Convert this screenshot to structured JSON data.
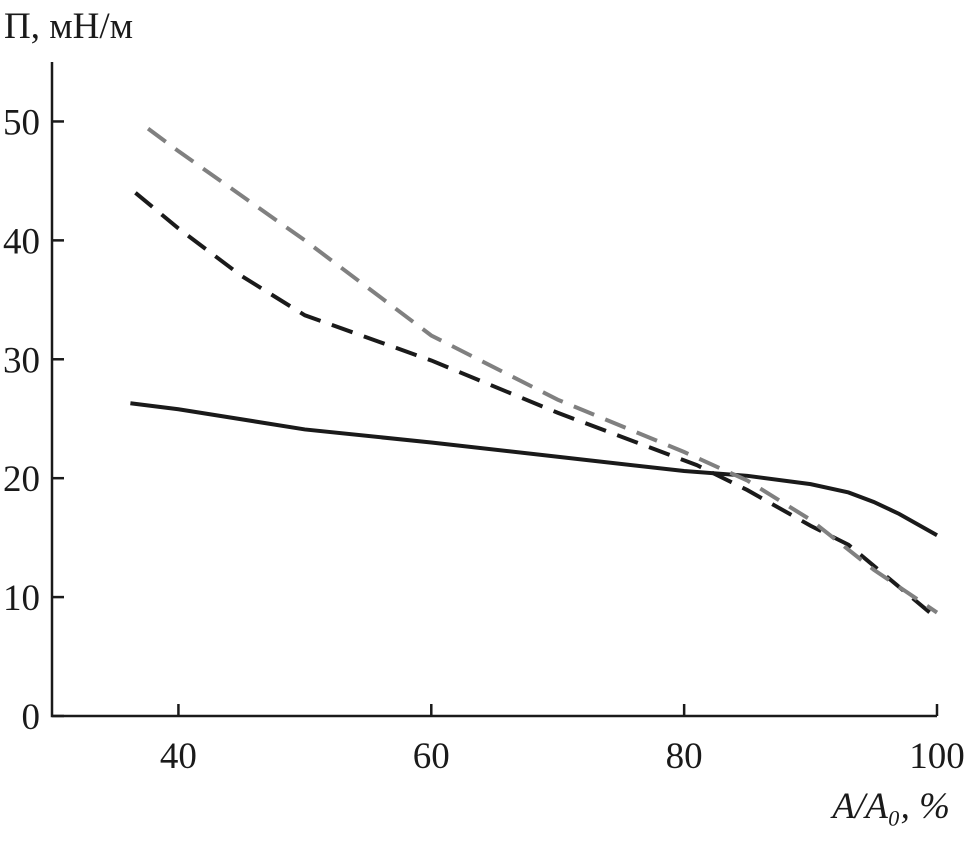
{
  "chart_data": {
    "type": "line",
    "ylabel": "П, мН/м",
    "xlabel": "A/A₀, %",
    "xlim": [
      30,
      100
    ],
    "xticks": [
      40,
      60,
      80,
      100
    ],
    "ylim": [
      0,
      55
    ],
    "yticks": [
      0,
      10,
      20,
      30,
      40,
      50
    ],
    "series": [
      {
        "color": "#1a1a1a",
        "dash": "solid",
        "x": [
          36.2,
          40,
          50,
          60,
          70,
          80,
          85,
          90,
          93,
          95,
          97,
          100
        ],
        "values": [
          26.3,
          25.8,
          24.1,
          23.0,
          21.8,
          20.6,
          20.2,
          19.5,
          18.8,
          18.0,
          17.0,
          15.2
        ]
      },
      {
        "color": "#1a1a1a",
        "dash": "dashed",
        "x": [
          36.6,
          40,
          45,
          50,
          60,
          70,
          81,
          85,
          90,
          93,
          100
        ],
        "values": [
          44,
          41,
          37,
          33.7,
          29.9,
          25.5,
          21.1,
          19,
          16,
          14.4,
          8.2
        ]
      },
      {
        "color": "#808080",
        "dash": "dashed",
        "x": [
          37.6,
          40,
          50,
          60,
          70,
          80,
          85,
          90,
          95,
          100
        ],
        "values": [
          49.4,
          47.5,
          40,
          32,
          26.6,
          22.2,
          19.8,
          16.5,
          12.3,
          8.7
        ]
      }
    ]
  }
}
